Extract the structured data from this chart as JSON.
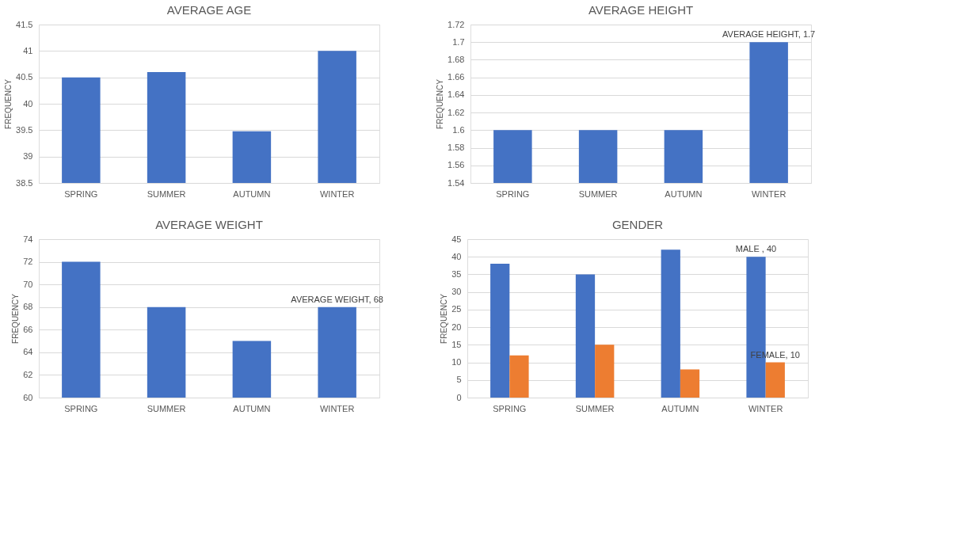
{
  "chart_data": [
    {
      "type": "bar",
      "title": "AVERAGE AGE",
      "ylabel": "FREQUENCY",
      "categories": [
        "SPRING",
        "SUMMER",
        "AUTUMN",
        "WINTER"
      ],
      "values": [
        40.5,
        40.6,
        39.48,
        41
      ],
      "color": "#4472c4",
      "ylim": [
        38.5,
        41.5
      ],
      "yticks": [
        38.5,
        39,
        39.5,
        40,
        40.5,
        41,
        41.5
      ],
      "grid": "y"
    },
    {
      "type": "bar",
      "title": "AVERAGE HEIGHT",
      "ylabel": "FREQUENCY",
      "categories": [
        "SPRING",
        "SUMMER",
        "AUTUMN",
        "WINTER"
      ],
      "values": [
        1.6,
        1.6,
        1.6,
        1.7
      ],
      "color": "#4472c4",
      "ylim": [
        1.54,
        1.72
      ],
      "yticks": [
        1.54,
        1.56,
        1.58,
        1.6,
        1.62,
        1.64,
        1.66,
        1.68,
        1.7,
        1.72
      ],
      "grid": "y",
      "annotations": [
        {
          "text": "AVERAGE HEIGHT, 1.7",
          "x": "WINTER",
          "y": 1.7
        }
      ]
    },
    {
      "type": "bar",
      "title": "AVERAGE WEIGHT",
      "ylabel": "FREQUENCY",
      "categories": [
        "SPRING",
        "SUMMER",
        "AUTUMN",
        "WINTER"
      ],
      "values": [
        72,
        68,
        65,
        68
      ],
      "color": "#4472c4",
      "ylim": [
        60,
        74
      ],
      "yticks": [
        60,
        62,
        64,
        66,
        68,
        70,
        72,
        74
      ],
      "grid": "y",
      "annotations": [
        {
          "text": "AVERAGE WEIGHT, 68",
          "x": "WINTER",
          "y": 68
        }
      ]
    },
    {
      "type": "bar",
      "title": "GENDER",
      "ylabel": "FREQUENCY",
      "categories": [
        "SPRING",
        "SUMMER",
        "AUTUMN",
        "WINTER"
      ],
      "ylim": [
        0,
        45
      ],
      "yticks": [
        0,
        5,
        10,
        15,
        20,
        25,
        30,
        35,
        40,
        45
      ],
      "grid": "y",
      "series": [
        {
          "color": "#4472c4",
          "values": [
            38,
            35,
            42,
            40
          ]
        },
        {
          "color": "#ed7d31",
          "values": [
            12,
            15,
            8,
            10
          ]
        }
      ],
      "annotations": [
        {
          "text": "MALE , 40",
          "x": "WINTER",
          "y": 40
        },
        {
          "text": "FEMALE, 10",
          "x": "WINTER",
          "y": 10
        }
      ]
    }
  ]
}
